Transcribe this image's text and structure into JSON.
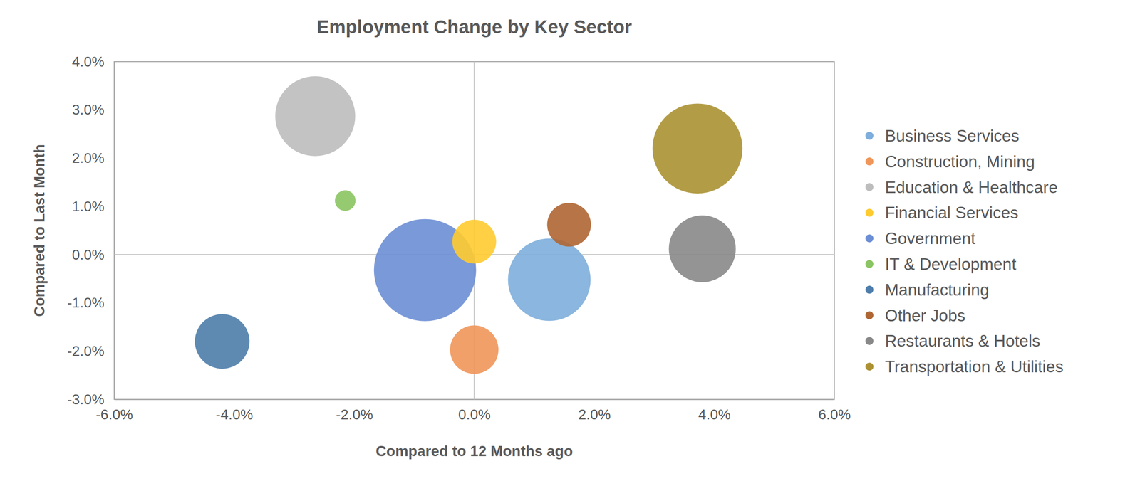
{
  "chart_data": {
    "type": "bubble",
    "title": "Employment Change by Key Sector",
    "x_label": "Compared to 12 Months ago",
    "y_label": "Compared to Last Month",
    "xlim": [
      -6,
      6
    ],
    "xticks": [
      {
        "value": -6,
        "label": "-6.0%"
      },
      {
        "value": -4,
        "label": "-4.0%"
      },
      {
        "value": -2,
        "label": "-2.0%"
      },
      {
        "value": 0,
        "label": "0.0%"
      },
      {
        "value": 2,
        "label": "2.0%"
      },
      {
        "value": 4,
        "label": "4.0%"
      },
      {
        "value": 6,
        "label": "6.0%"
      }
    ],
    "ylim": [
      -3,
      4
    ],
    "yticks": [
      {
        "value": -3,
        "label": "-3.0%"
      },
      {
        "value": -2,
        "label": "-2.0%"
      },
      {
        "value": -1,
        "label": "-1.0%"
      },
      {
        "value": 0,
        "label": "0.0%"
      },
      {
        "value": 1,
        "label": "1.0%"
      },
      {
        "value": 2,
        "label": "2.0%"
      },
      {
        "value": 3,
        "label": "3.0%"
      },
      {
        "value": 4,
        "label": "4.0%"
      }
    ],
    "grid": false,
    "legend": "right",
    "series": [
      {
        "name": "Business Services",
        "color": "#7daedc",
        "x": [
          1.25
        ],
        "values": [
          -0.52
        ],
        "size": [
          32
        ]
      },
      {
        "name": "Construction, Mining",
        "color": "#f0965a",
        "x": [
          0.0
        ],
        "values": [
          -1.97
        ],
        "size": [
          11
        ]
      },
      {
        "name": "Education & Healthcare",
        "color": "#bdbdbd",
        "x": [
          -2.65
        ],
        "values": [
          2.87
        ],
        "size": [
          30
        ]
      },
      {
        "name": "Financial Services",
        "color": "#ffcb2f",
        "x": [
          0.0
        ],
        "values": [
          0.27
        ],
        "size": [
          9
        ]
      },
      {
        "name": "Government",
        "color": "#6c8ed4",
        "x": [
          -0.82
        ],
        "values": [
          -0.32
        ],
        "size": [
          49
        ]
      },
      {
        "name": "IT & Development",
        "color": "#8bc462",
        "x": [
          -2.15
        ],
        "values": [
          1.12
        ],
        "size": [
          2
        ]
      },
      {
        "name": "Manufacturing",
        "color": "#4d7daa",
        "x": [
          -4.2
        ],
        "values": [
          -1.8
        ],
        "size": [
          14
        ]
      },
      {
        "name": "Other Jobs",
        "color": "#af6633",
        "x": [
          1.58
        ],
        "values": [
          0.62
        ],
        "size": [
          9
        ]
      },
      {
        "name": "Restaurants & Hotels",
        "color": "#888888",
        "x": [
          3.8
        ],
        "values": [
          0.12
        ],
        "size": [
          21
        ]
      },
      {
        "name": "Transportation & Utilities",
        "color": "#ab9132",
        "x": [
          3.72
        ],
        "values": [
          2.2
        ],
        "size": [
          38
        ]
      }
    ]
  }
}
